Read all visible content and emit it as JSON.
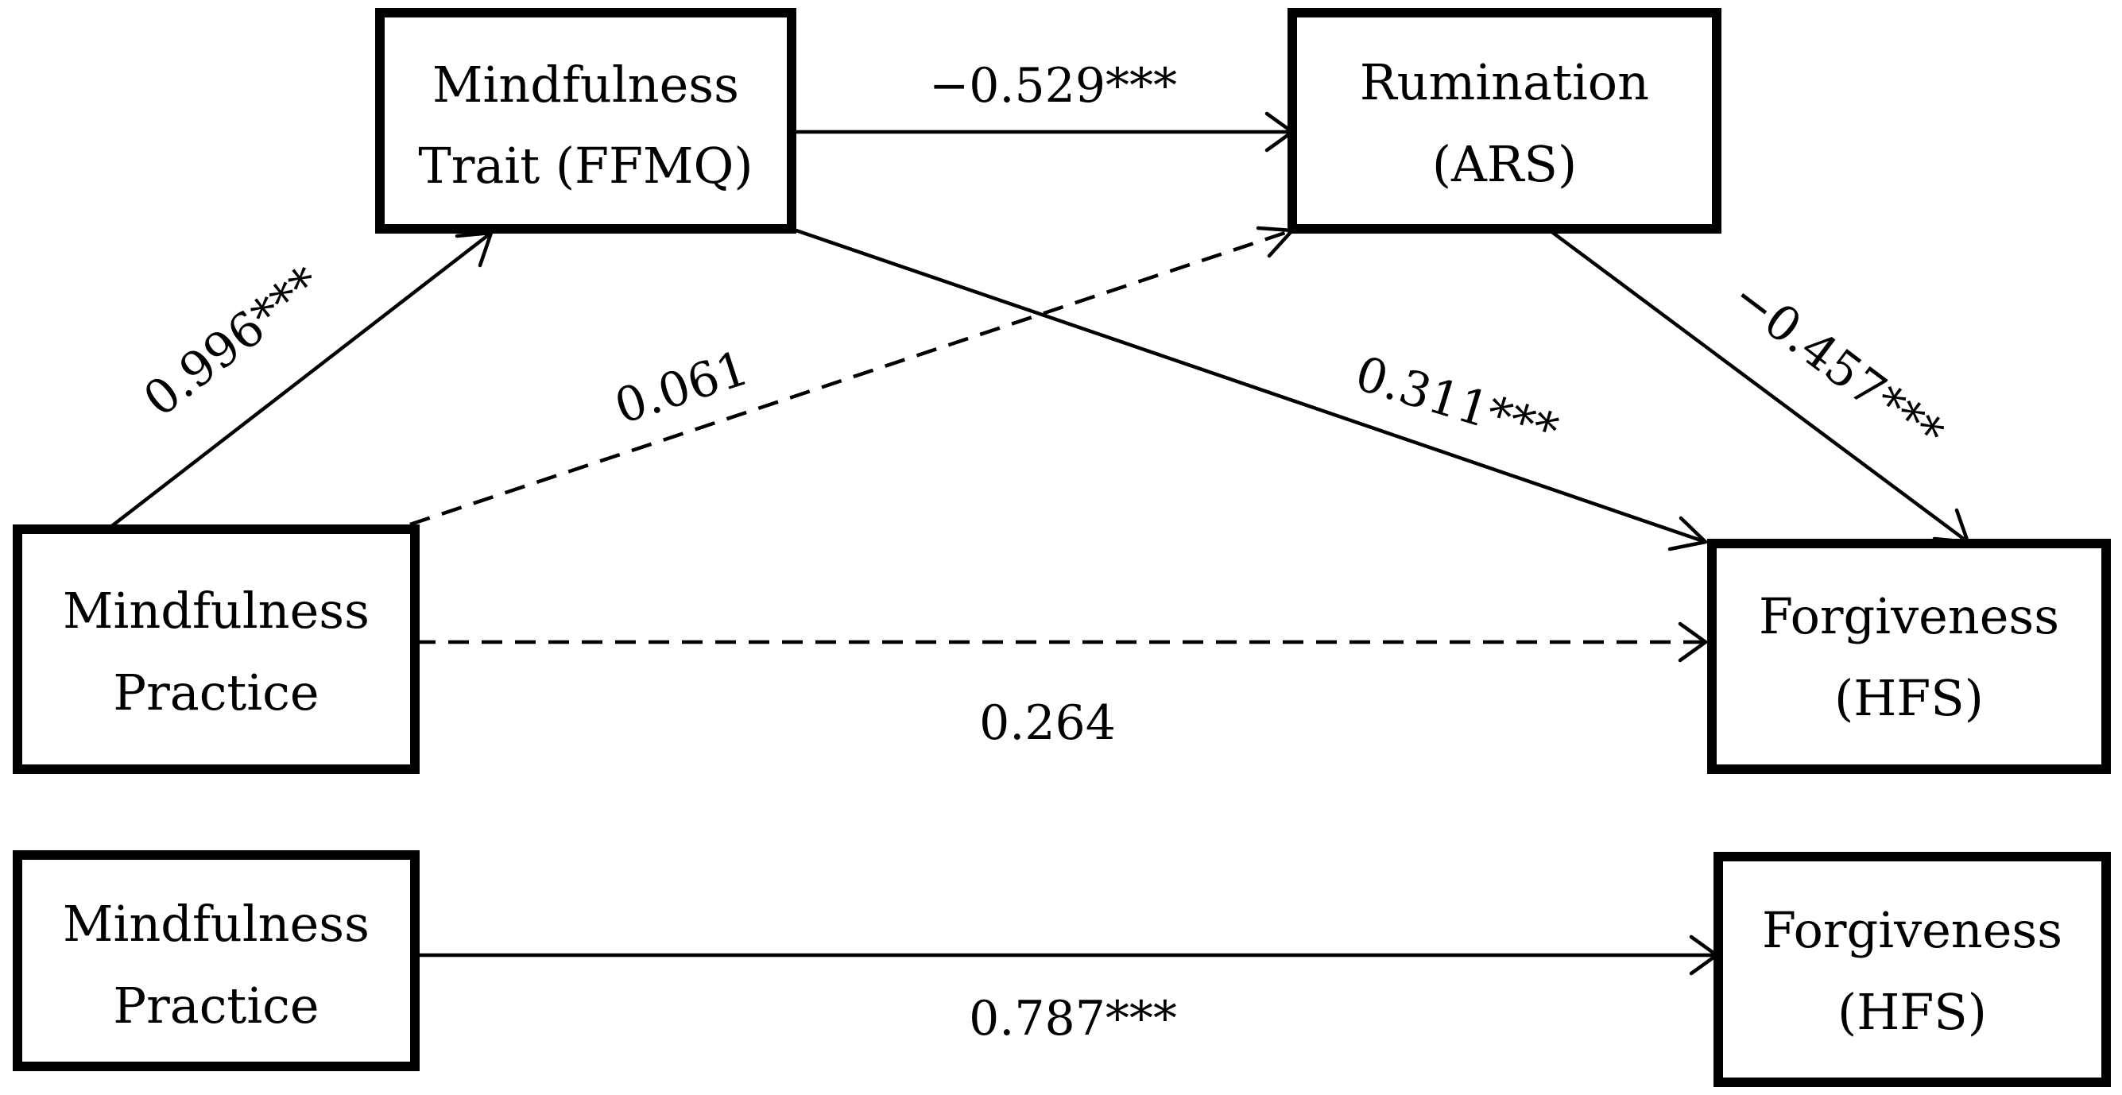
{
  "diagram": {
    "nodes": {
      "mindfulness_trait": {
        "line1": "Mindfulness",
        "line2": "Trait (FFMQ)"
      },
      "rumination": {
        "line1": "Rumination",
        "line2": "(ARS)"
      },
      "mindfulness_practice": {
        "line1": "Mindfulness",
        "line2": "Practice"
      },
      "forgiveness": {
        "line1": "Forgiveness",
        "line2": "(HFS)"
      },
      "total_mindfulness_practice": {
        "line1": "Mindfulness",
        "line2": "Practice"
      },
      "total_forgiveness": {
        "line1": "Forgiveness",
        "line2": "(HFS)"
      }
    },
    "paths": {
      "practice_to_trait": {
        "coefficient": "0.996***",
        "style": "solid"
      },
      "trait_to_rumination": {
        "coefficient": "−0.529***",
        "style": "solid"
      },
      "rumination_to_forgiveness": {
        "coefficient": "−0.457***",
        "style": "solid"
      },
      "trait_to_forgiveness": {
        "coefficient": "0.311***",
        "style": "solid"
      },
      "practice_to_rumination": {
        "coefficient": "0.061",
        "style": "dashed"
      },
      "practice_to_forgiveness_direct": {
        "coefficient": "0.264",
        "style": "dashed"
      },
      "practice_to_forgiveness_total": {
        "coefficient": "0.787***",
        "style": "solid"
      }
    }
  }
}
